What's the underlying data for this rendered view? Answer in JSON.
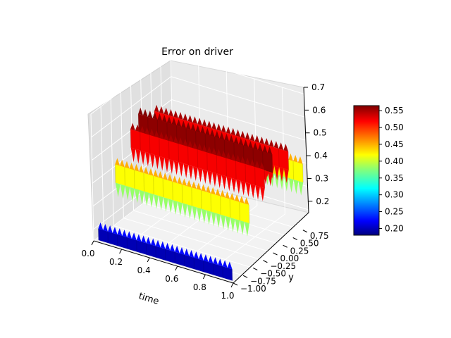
{
  "chart_data": {
    "type": "surface3d",
    "title": "Error on driver",
    "xlabel": "time",
    "ylabel": "y",
    "zlabel": "",
    "colormap": "jet",
    "x_ticks": [
      "0.0",
      "0.2",
      "0.4",
      "0.6",
      "0.8",
      "1.0"
    ],
    "y_ticks": [
      "−1.00",
      "−0.75",
      "−0.50",
      "−0.25",
      "0.00",
      "0.25",
      "0.50",
      "0.75"
    ],
    "z_ticks": [
      "0.2",
      "0.3",
      "0.4",
      "0.5",
      "0.6",
      "0.7"
    ],
    "xlim": [
      0,
      1
    ],
    "ylim": [
      -1,
      1
    ],
    "zlim": [
      0.15,
      0.7
    ],
    "colorbar": {
      "min": 0.18,
      "max": 0.565,
      "ticks": [
        "0.20",
        "0.25",
        "0.30",
        "0.35",
        "0.40",
        "0.45",
        "0.50",
        "0.55"
      ]
    },
    "series": [
      {
        "y": -0.95,
        "z": 0.2
      },
      {
        "y": -0.5,
        "z": 0.42
      },
      {
        "y": -0.1,
        "z": 0.52
      },
      {
        "y": 0.1,
        "z": 0.56
      },
      {
        "y": 0.5,
        "z": 0.52
      },
      {
        "y": 0.85,
        "z": 0.42
      }
    ]
  }
}
